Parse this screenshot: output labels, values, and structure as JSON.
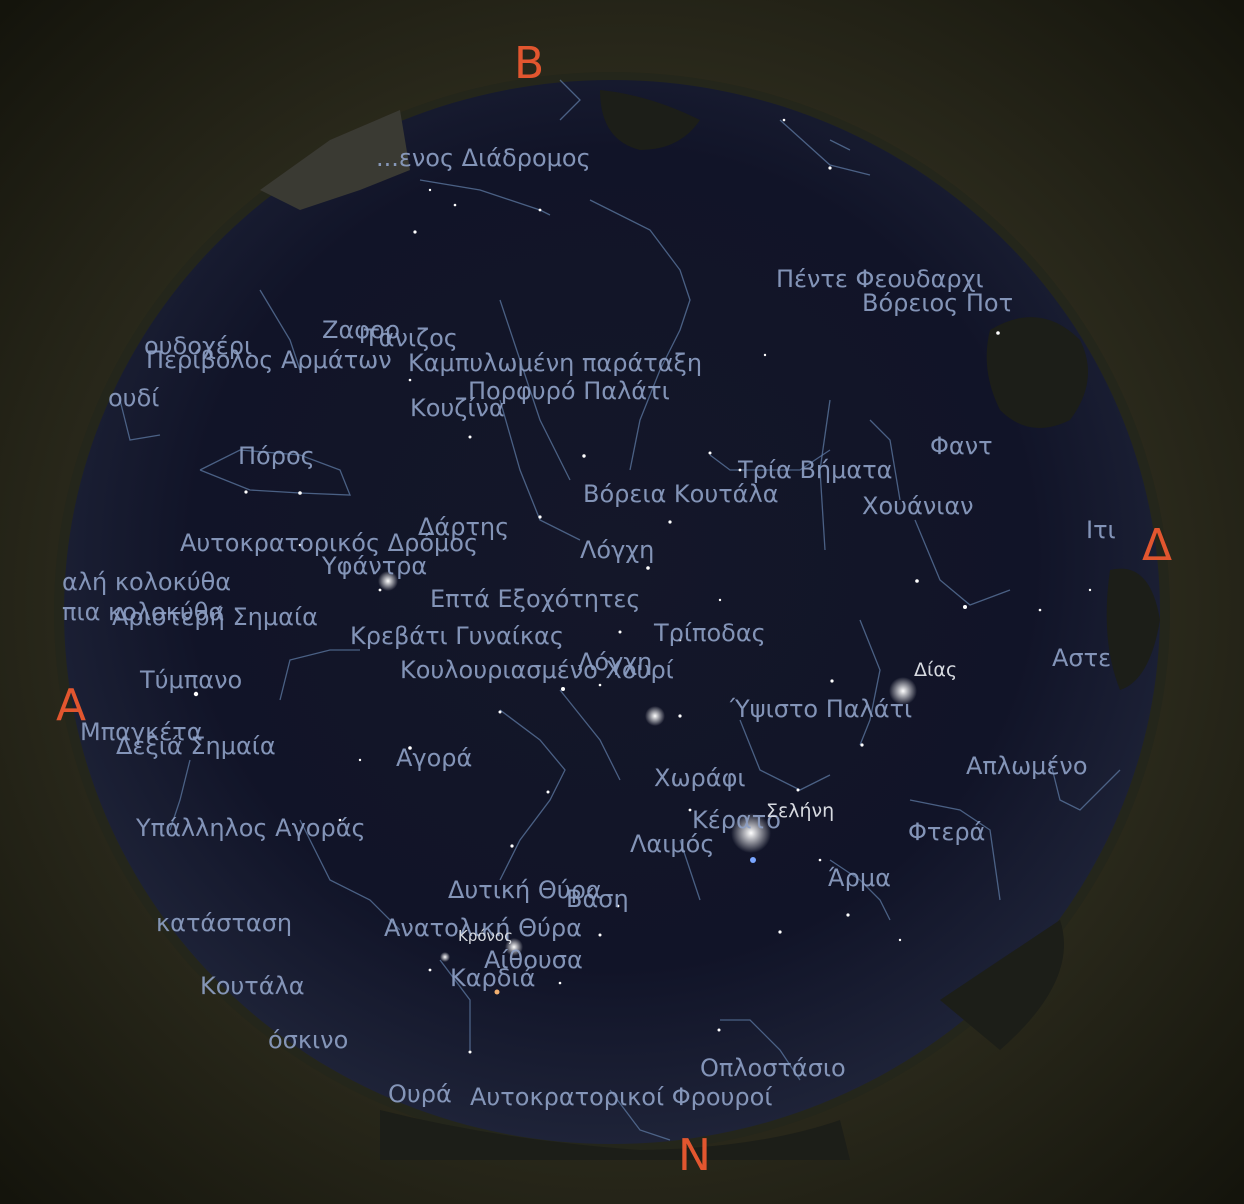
{
  "compass": {
    "north_label": "Β",
    "south_label": "Ν",
    "east_label": "Α",
    "west_label": "Δ",
    "color": "#e2562f"
  },
  "constellations": [
    "...ενος Διάδρομος",
    "Πέντε Φεουδαρχι",
    "Βόρειος Ποτ",
    "Ζαφορ",
    "Τάνιζος",
    "ουδοχέρι",
    "Περίβολος Αρμάτων",
    "Καμπυλωμένη παράταξη",
    "Πορφυρό Παλάτι",
    "Κουζίνα",
    "ουδί",
    "Φαντ",
    "Πόρος",
    "Τρία Βήματα",
    "Βόρεια Κουτάλα",
    "Χουάνιαν",
    "Ιτι",
    "Δάρτης",
    "Αυτοκρατορικός Δρόμος",
    "Λόγχη",
    "Υφάντρα",
    "αλή κολοκύθα",
    "Επτά Εξοχότητες",
    "πια κολοκύθα",
    "Αριστερή Σημαία",
    "Κρεβάτι Γυναίκας",
    "Τρίποδας",
    "Λόγχη",
    "Κουλουριασμένο Χουρί",
    "Αστε",
    "Τύμπανο",
    "Ύψιστο Παλάτι",
    "Μπαγκέτα",
    "Δεξιά Σημαία",
    "Αγορά",
    "Απλωμένο",
    "Χωράφι",
    "Υπάλληλος Αγοράς",
    "Κέρατο",
    "Φτερά",
    "Λαιμός",
    "Άρμα",
    "Δυτική Θύρα",
    "Βάση",
    "κατάσταση",
    "Ανατολική Θύρα",
    "Αίθουσα",
    "Κουτάλα",
    "Καρδιά",
    "όσκινο",
    "Οπλοστάσιο",
    "Ουρά",
    "Αυτοκρατορικοί Φρουροί"
  ],
  "planets": {
    "jupiter": "Δίας",
    "moon": "Σελήνη",
    "saturn": "Κρόνος"
  },
  "colors": {
    "sky": "#0f1222",
    "labels": "#8d9fc4",
    "lines": "#5d7aa3",
    "ground": "#1a1b12"
  }
}
